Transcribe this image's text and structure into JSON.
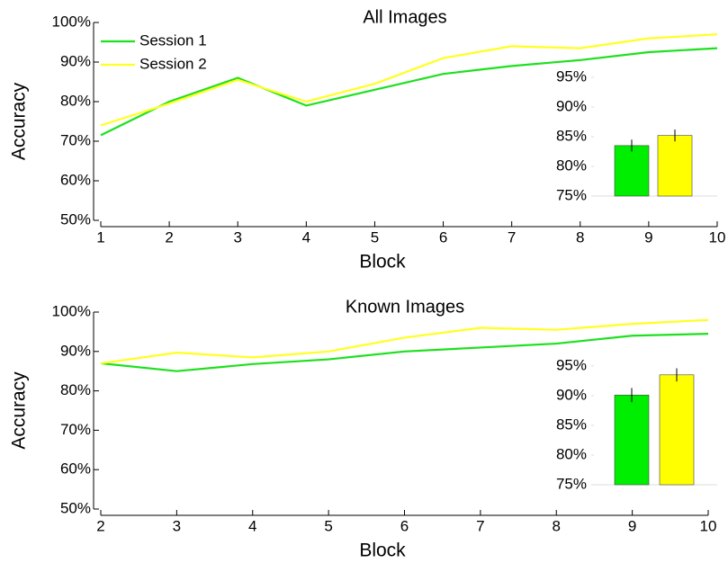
{
  "chart_data": [
    {
      "type": "line",
      "title": "All Images",
      "x_label": "Block",
      "y_label": "Accuracy",
      "x": [
        1,
        2,
        3,
        4,
        5,
        6,
        7,
        8,
        9,
        10
      ],
      "xlim": [
        1,
        10
      ],
      "xticks": [
        1,
        2,
        3,
        4,
        5,
        6,
        7,
        8,
        9,
        10
      ],
      "ylim": [
        50,
        100
      ],
      "yticks": [
        {
          "value": 50,
          "label": "50%"
        },
        {
          "value": 60,
          "label": "60%"
        },
        {
          "value": 70,
          "label": "70%"
        },
        {
          "value": 80,
          "label": "80%"
        },
        {
          "value": 90,
          "label": "90%"
        },
        {
          "value": 100,
          "label": "100%"
        }
      ],
      "legend": "upper left",
      "series": [
        {
          "name": "Session 1",
          "color": "#1ee01e",
          "values": [
            71.5,
            80,
            86,
            79,
            83,
            87,
            89,
            90.5,
            92.5,
            93.5
          ]
        },
        {
          "name": "Session 2",
          "color": "#ffff22",
          "values": [
            74,
            79.5,
            85.5,
            80,
            84.5,
            91,
            94,
            93.5,
            96,
            97
          ]
        }
      ],
      "inset": {
        "type": "bar",
        "values": [
          83.5,
          85.2
        ],
        "errors": [
          1,
          1
        ],
        "colors": [
          "#00ee00",
          "#ffff00"
        ],
        "ylim": [
          75,
          96.5
        ],
        "yticks": [
          {
            "value": 75,
            "label": "75%"
          },
          {
            "value": 80,
            "label": "80%"
          },
          {
            "value": 85,
            "label": "85%"
          },
          {
            "value": 90,
            "label": "90%"
          },
          {
            "value": 95,
            "label": "95%"
          }
        ]
      }
    },
    {
      "type": "line",
      "title": "Known Images",
      "x_label": "Block",
      "y_label": "Accuracy",
      "x": [
        2,
        3,
        4,
        5,
        6,
        7,
        8,
        9,
        10
      ],
      "xlim": [
        2,
        10
      ],
      "xticks": [
        2,
        3,
        4,
        5,
        6,
        7,
        8,
        9,
        10
      ],
      "ylim": [
        50,
        100
      ],
      "yticks": [
        {
          "value": 50,
          "label": "50%"
        },
        {
          "value": 60,
          "label": "60%"
        },
        {
          "value": 70,
          "label": "70%"
        },
        {
          "value": 80,
          "label": "80%"
        },
        {
          "value": 90,
          "label": "90%"
        },
        {
          "value": 100,
          "label": "100%"
        }
      ],
      "series": [
        {
          "color": "#1ee01e",
          "values": [
            87,
            85,
            86.8,
            88,
            90,
            91,
            92,
            94,
            94.5
          ]
        },
        {
          "color": "#ffff22",
          "values": [
            87,
            89.7,
            88.5,
            90,
            93.5,
            96,
            95.5,
            97,
            98
          ]
        }
      ],
      "inset": {
        "type": "bar",
        "values": [
          90.1,
          93.5
        ],
        "errors": [
          1.2,
          1.1
        ],
        "colors": [
          "#00ee00",
          "#ffff00"
        ],
        "ylim": [
          75,
          96.8
        ],
        "yticks": [
          {
            "value": 75,
            "label": "75%"
          },
          {
            "value": 80,
            "label": "80%"
          },
          {
            "value": 85,
            "label": "85%"
          },
          {
            "value": 90,
            "label": "90%"
          },
          {
            "value": 95,
            "label": "95%"
          }
        ]
      }
    }
  ]
}
